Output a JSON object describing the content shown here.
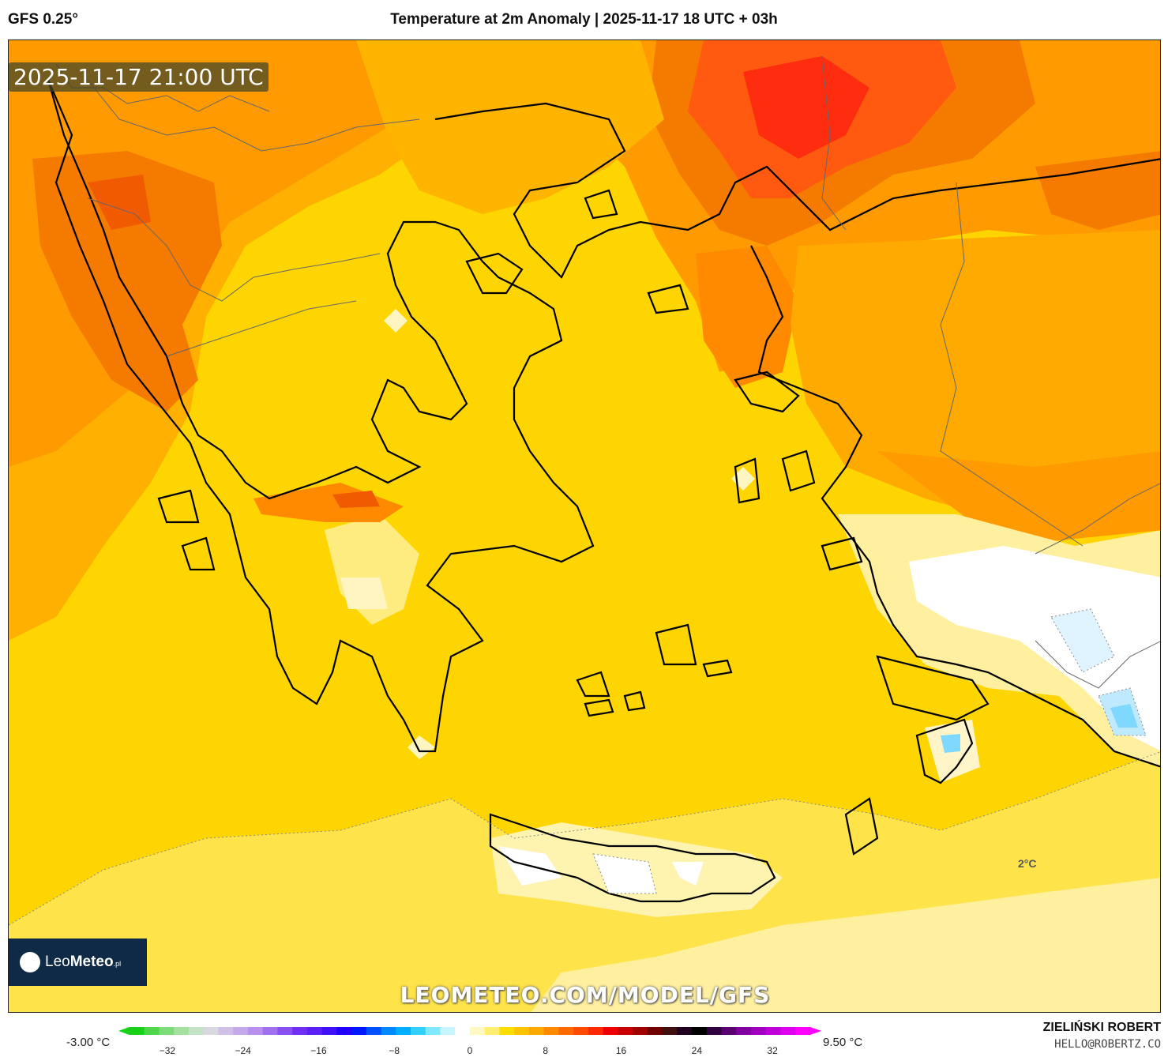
{
  "header": {
    "model": "GFS 0.25°",
    "title": "Temperature at 2m Anomaly | 2025-11-17 18 UTC + 03h"
  },
  "map": {
    "timestamp": "2025-11-17 21:00 UTC",
    "isoline_label": "2°C",
    "watermark": "LEOMETEO.COM/MODEL/GFS",
    "logo": {
      "prefix": "Leo",
      "bold": "Meteo",
      "suffix": ".pl",
      "icon": "sun-icon"
    },
    "colors": {
      "sea": "#ffd500",
      "hot": "#f57a00",
      "hottest": "#ff2d10",
      "cool": "#fff5b0",
      "cold": "#ffffff",
      "ice": "#7fd8ff"
    }
  },
  "colorbar": {
    "min_label": "-3.00 °C",
    "max_label": "9.50 °C",
    "tick_labels": [
      "−32",
      "−24",
      "−16",
      "−8",
      "0",
      "8",
      "16",
      "24",
      "32"
    ],
    "tick_values": [
      -32,
      -24,
      -16,
      -8,
      0,
      8,
      16,
      24,
      32
    ],
    "range": [
      -36,
      36
    ],
    "colors": [
      "#18d018",
      "#4fd64a",
      "#7cdc78",
      "#a4e0a0",
      "#c4e2c8",
      "#d8d8e0",
      "#d0c0e8",
      "#c4a8ec",
      "#b890ee",
      "#a070f0",
      "#8850f2",
      "#7030f4",
      "#5a20f8",
      "#4010fa",
      "#2000fc",
      "#0018ff",
      "#0050ff",
      "#0088ff",
      "#00b0ff",
      "#30d0ff",
      "#80e8ff",
      "#c8f4ff",
      "#ffffff",
      "#fff8c0",
      "#ffee70",
      "#ffdd00",
      "#ffc400",
      "#ffa800",
      "#ff8a00",
      "#ff6a00",
      "#ff4a00",
      "#ff2800",
      "#ee0000",
      "#c80000",
      "#a00000",
      "#700000",
      "#401010",
      "#200020",
      "#000000",
      "#300040",
      "#5a0070",
      "#8000a0",
      "#a000c0",
      "#c000d8",
      "#e000f0",
      "#ff00ff"
    ]
  },
  "footer": {
    "author": "ZIELIŃSKI ROBERT",
    "email": "HELLO@ROBERTZ.CO"
  }
}
